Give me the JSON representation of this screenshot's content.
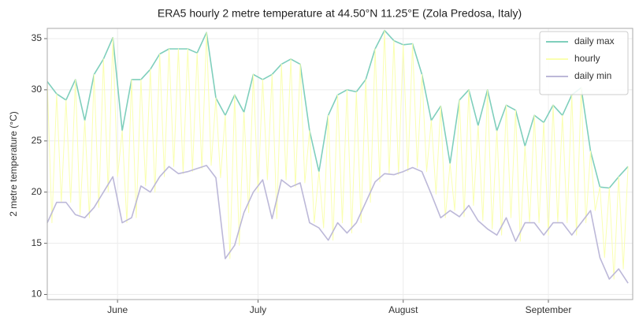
{
  "chart_data": {
    "type": "line",
    "title": "ERA5 hourly 2 metre temperature at 44.50°N 11.25°E (Zola Predosa, Italy)",
    "y_label": "2 metre temperature (°C)",
    "xlim": [
      137,
      262
    ],
    "xticks": [
      {
        "value": 152,
        "label": "June"
      },
      {
        "value": 182,
        "label": "July"
      },
      {
        "value": 213,
        "label": "August"
      },
      {
        "value": 244,
        "label": "September"
      }
    ],
    "ylim": [
      9.5,
      36.0
    ],
    "yticks": [
      10,
      15,
      20,
      25,
      30,
      35
    ],
    "grid": true,
    "legend": "upper right",
    "x": [
      137,
      139,
      141,
      143,
      145,
      147,
      149,
      151,
      153,
      155,
      157,
      159,
      161,
      163,
      165,
      167,
      169,
      171,
      173,
      175,
      177,
      179,
      181,
      183,
      185,
      187,
      189,
      191,
      193,
      195,
      197,
      199,
      201,
      203,
      205,
      207,
      209,
      211,
      213,
      215,
      217,
      219,
      221,
      223,
      225,
      227,
      229,
      231,
      233,
      235,
      237,
      239,
      241,
      243,
      245,
      247,
      249,
      251,
      253,
      255,
      257,
      259,
      261
    ],
    "series": [
      {
        "name": "daily max",
        "color": "#7fcfbc",
        "values": [
          30.8,
          29.6,
          29.0,
          31.0,
          27.0,
          31.5,
          33.0,
          35.1,
          26.0,
          31.0,
          31.0,
          32.0,
          33.5,
          34.0,
          34.0,
          34.0,
          33.6,
          35.6,
          29.2,
          27.5,
          29.5,
          27.8,
          31.5,
          31.0,
          31.5,
          32.5,
          33.0,
          32.5,
          26.0,
          22.0,
          27.5,
          29.5,
          30.0,
          29.8,
          31.0,
          34.0,
          35.8,
          34.8,
          34.4,
          34.5,
          31.5,
          27.0,
          28.4,
          22.8,
          29.0,
          30.0,
          26.5,
          30.0,
          26.0,
          28.5,
          28.0,
          24.5,
          27.5,
          26.8,
          28.5,
          27.5,
          29.5,
          30.2,
          24.0,
          20.5,
          20.4,
          21.5,
          22.5
        ]
      },
      {
        "name": "hourly",
        "color": "#faffb0",
        "x": [
          137,
          138,
          139,
          140,
          141,
          142,
          143,
          144,
          145,
          146,
          147,
          148,
          149,
          150,
          151,
          152,
          153,
          154,
          155,
          156,
          157,
          158,
          159,
          160,
          161,
          162,
          163,
          164,
          165,
          166,
          167,
          168,
          169,
          170,
          171,
          172,
          173,
          174,
          175,
          176,
          177,
          178,
          179,
          180,
          181,
          182,
          183,
          184,
          185,
          186,
          187,
          188,
          189,
          190,
          191,
          192,
          193,
          194,
          195,
          196,
          197,
          198,
          199,
          200,
          201,
          202,
          203,
          204,
          205,
          206,
          207,
          208,
          209,
          210,
          211,
          212,
          213,
          214,
          215,
          216,
          217,
          218,
          219,
          220,
          221,
          222,
          223,
          224,
          225,
          226,
          227,
          228,
          229,
          230,
          231,
          232,
          233,
          234,
          235,
          236,
          237,
          238,
          239,
          240,
          241,
          242,
          243,
          244,
          245,
          246,
          247,
          248,
          249,
          250,
          251,
          252,
          253,
          254,
          255,
          256,
          257,
          258,
          259,
          260,
          261
        ],
        "values": [
          30.8,
          17.0,
          29.6,
          19.0,
          29.0,
          19.0,
          31.0,
          17.8,
          27.0,
          17.5,
          31.5,
          18.5,
          33.0,
          20.0,
          35.1,
          21.5,
          26.0,
          17.0,
          31.0,
          17.5,
          31.0,
          20.6,
          32.0,
          20.0,
          33.5,
          21.5,
          34.0,
          22.5,
          34.0,
          21.8,
          34.0,
          22.0,
          33.6,
          22.3,
          35.6,
          22.6,
          29.2,
          21.4,
          27.5,
          13.5,
          29.5,
          14.8,
          27.8,
          18.0,
          31.5,
          20.0,
          31.0,
          21.2,
          31.5,
          17.4,
          32.5,
          21.2,
          33.0,
          20.5,
          32.5,
          20.9,
          26.0,
          17.0,
          22.0,
          16.5,
          27.5,
          15.3,
          29.5,
          17.0,
          30.0,
          16.0,
          29.8,
          17.0,
          31.0,
          19.0,
          34.0,
          21.0,
          35.8,
          21.8,
          34.8,
          21.7,
          34.4,
          22.0,
          34.5,
          22.4,
          31.5,
          22.0,
          27.0,
          19.8,
          28.4,
          17.5,
          22.8,
          18.2,
          29.0,
          17.6,
          30.0,
          18.7,
          26.5,
          17.2,
          30.0,
          16.4,
          26.0,
          15.8,
          28.5,
          17.5,
          28.0,
          15.2,
          24.5,
          17.0,
          27.5,
          17.0,
          26.8,
          15.8,
          28.5,
          17.0,
          27.5,
          17.0,
          29.5,
          15.8,
          30.2,
          17.0,
          24.0,
          18.2,
          20.5,
          13.6,
          20.4,
          11.5,
          21.5,
          12.5,
          22.5
        ]
      },
      {
        "name": "daily min",
        "color": "#bcb8d8",
        "values": [
          17.0,
          19.0,
          19.0,
          17.8,
          17.5,
          18.5,
          20.0,
          21.5,
          17.0,
          17.5,
          20.6,
          20.0,
          21.5,
          22.5,
          21.8,
          22.0,
          22.3,
          22.6,
          21.4,
          13.5,
          14.8,
          18.0,
          20.0,
          21.2,
          17.4,
          21.2,
          20.5,
          20.9,
          17.0,
          16.5,
          15.3,
          17.0,
          16.0,
          17.0,
          19.0,
          21.0,
          21.8,
          21.7,
          22.0,
          22.4,
          22.0,
          19.8,
          17.5,
          18.2,
          17.6,
          18.7,
          17.2,
          16.4,
          15.8,
          17.5,
          15.2,
          17.0,
          17.0,
          15.8,
          17.0,
          17.0,
          15.8,
          17.0,
          18.2,
          13.6,
          11.5,
          12.5,
          11.1
        ]
      }
    ]
  }
}
